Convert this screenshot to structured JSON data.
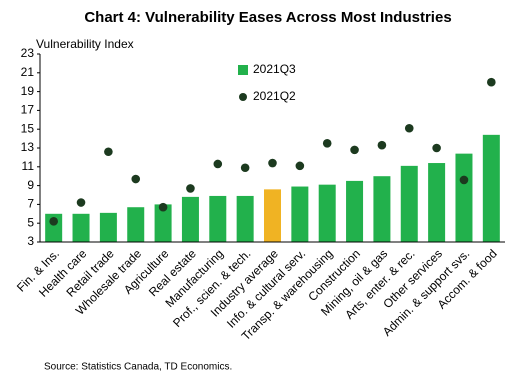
{
  "chart_data": {
    "type": "bar",
    "title": "Chart 4: Vulnerability Eases Across Most Industries",
    "y_label": "Vulnerability Index",
    "source": "Source:  Statistics Canada,  TD Economics.",
    "categories": [
      "Fin. & Ins.",
      "Health care",
      "Retail trade",
      "Wholesale trade",
      "Agriculture",
      "Real estate",
      "Manufacturing",
      "Prof., scien. & tech.",
      "Industry average",
      "Info. & cultural serv.",
      "Transp. & warehousing",
      "Construction",
      "Mining, oil & gas",
      "Arts, enter. & rec.",
      "Other services",
      "Admin. & support svs.",
      "Accom. & food"
    ],
    "series": [
      {
        "name": "2021Q3",
        "type": "bar",
        "color": "#22b14c",
        "colors": [
          "#22b14c",
          "#22b14c",
          "#22b14c",
          "#22b14c",
          "#22b14c",
          "#22b14c",
          "#22b14c",
          "#22b14c",
          "#f0b323",
          "#22b14c",
          "#22b14c",
          "#22b14c",
          "#22b14c",
          "#22b14c",
          "#22b14c",
          "#22b14c",
          "#22b14c"
        ],
        "values": [
          6.0,
          6.0,
          6.1,
          6.7,
          7.0,
          7.8,
          7.9,
          7.9,
          8.6,
          8.9,
          9.1,
          9.5,
          10.0,
          11.1,
          11.4,
          12.4,
          14.4
        ]
      },
      {
        "name": "2021Q2",
        "type": "scatter",
        "color": "#1c3a1f",
        "values": [
          5.2,
          7.2,
          12.6,
          9.7,
          6.7,
          8.7,
          11.3,
          10.9,
          11.4,
          11.1,
          13.5,
          12.8,
          13.3,
          15.1,
          13.0,
          9.6,
          20.0
        ]
      }
    ],
    "ylim": [
      3,
      23
    ],
    "yticks": [
      3,
      5,
      7,
      9,
      11,
      13,
      15,
      17,
      19,
      21,
      23
    ],
    "grid": false
  }
}
